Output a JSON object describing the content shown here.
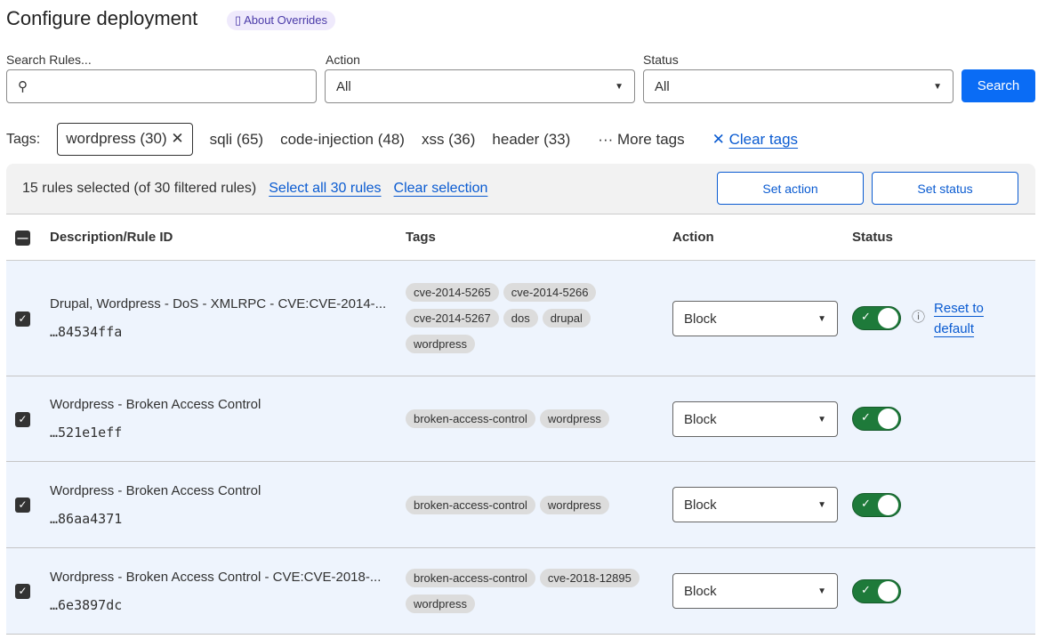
{
  "title": "Configure deployment",
  "about": "About Overrides",
  "filters": {
    "search_label": "Search Rules...",
    "search_value": "",
    "action_label": "Action",
    "action_value": "All",
    "status_label": "Status",
    "status_value": "All",
    "search_button": "Search"
  },
  "tags": {
    "label": "Tags:",
    "selected": "wordpress (30)",
    "others": [
      "sqli (65)",
      "code-injection (48)",
      "xss (36)",
      "header (33)"
    ],
    "more": "More tags",
    "clear": "Clear tags"
  },
  "selection": {
    "summary": "15 rules selected (of 30 filtered rules)",
    "select_all": "Select all 30 rules",
    "clear": "Clear selection",
    "set_action": "Set action",
    "set_status": "Set status"
  },
  "table": {
    "headers": [
      "Description/Rule ID",
      "Tags",
      "Action",
      "Status"
    ],
    "rows": [
      {
        "desc": "Drupal, Wordpress - DoS - XMLRPC - CVE:CVE-2014-...",
        "id": "…84534ffa",
        "tags": [
          "cve-2014-5265",
          "cve-2014-5266",
          "cve-2014-5267",
          "dos",
          "drupal",
          "wordpress"
        ],
        "action": "Block",
        "enabled": true,
        "reset": "Reset to default"
      },
      {
        "desc": "Wordpress - Broken Access Control",
        "id": "…521e1eff",
        "tags": [
          "broken-access-control",
          "wordpress"
        ],
        "action": "Block",
        "enabled": true
      },
      {
        "desc": "Wordpress - Broken Access Control",
        "id": "…86aa4371",
        "tags": [
          "broken-access-control",
          "wordpress"
        ],
        "action": "Block",
        "enabled": true
      },
      {
        "desc": "Wordpress - Broken Access Control - CVE:CVE-2018-...",
        "id": "…6e3897dc",
        "tags": [
          "broken-access-control",
          "cve-2018-12895",
          "wordpress"
        ],
        "action": "Block",
        "enabled": true
      }
    ]
  }
}
